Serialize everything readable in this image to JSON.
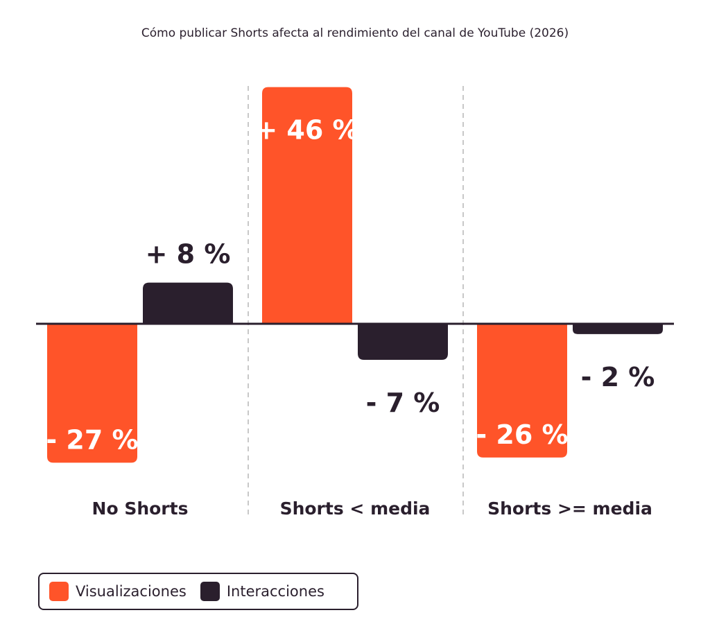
{
  "chart_data": {
    "type": "bar",
    "title": "Cómo publicar Shorts afecta al rendimiento del canal de YouTube (2026)",
    "categories": [
      "No Shorts",
      "Shorts < media",
      "Shorts >= media"
    ],
    "series": [
      {
        "name": "Visualizaciones",
        "color": "#ff5429",
        "values": [
          -27,
          46,
          -26
        ]
      },
      {
        "name": "Interacciones",
        "color": "#2a1f2d",
        "values": [
          8,
          -7,
          -2
        ]
      }
    ],
    "data_labels": {
      "Visualizaciones": [
        "- 27 %",
        "+ 46 %",
        "- 26 %"
      ],
      "Interacciones": [
        "+ 8 %",
        "- 7 %",
        "- 2 %"
      ]
    },
    "xlabel": "",
    "ylabel": "",
    "ylim": [
      -30,
      50
    ],
    "grid": false,
    "legend_position": "bottom-left"
  }
}
